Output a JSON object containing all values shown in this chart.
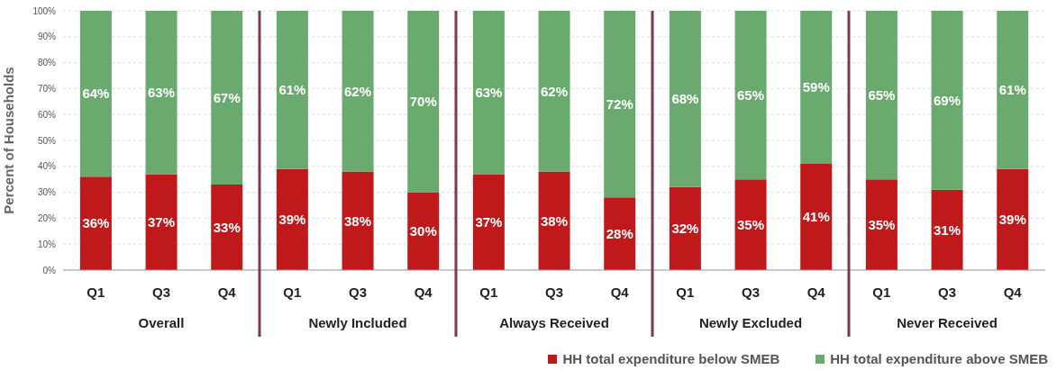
{
  "chart_data": {
    "type": "bar",
    "stacked": true,
    "ylabel": "Percent of Households",
    "categories": [
      "Q1",
      "Q3",
      "Q4",
      "Q1",
      "Q3",
      "Q4",
      "Q1",
      "Q3",
      "Q4",
      "Q1",
      "Q3",
      "Q4",
      "Q1",
      "Q3",
      "Q4"
    ],
    "annotations": [
      "Overall",
      "Newly Included",
      "Always Received",
      "Newly Excluded",
      "Never Received"
    ],
    "series": [
      {
        "name": "HH total expenditure below SMEB",
        "color": "#c0191c",
        "values": [
          36,
          37,
          33,
          39,
          38,
          30,
          37,
          38,
          28,
          32,
          35,
          41,
          35,
          31,
          39
        ],
        "value_labels": [
          "36%",
          "37%",
          "33%",
          "39%",
          "38%",
          "30%",
          "37%",
          "38%",
          "28%",
          "32%",
          "35%",
          "41%",
          "35%",
          "31%",
          "39%"
        ]
      },
      {
        "name": "HH total expenditure above SMEB",
        "color": "#6aaa6e",
        "values": [
          64,
          63,
          67,
          61,
          62,
          70,
          63,
          62,
          72,
          68,
          65,
          59,
          65,
          69,
          61
        ],
        "value_labels": [
          "64%",
          "63%",
          "67%",
          "61%",
          "62%",
          "70%",
          "63%",
          "62%",
          "72%",
          "68%",
          "65%",
          "59%",
          "65%",
          "69%",
          "61%"
        ]
      }
    ],
    "ylim": [
      0,
      100
    ],
    "yticks": [
      {
        "value": 0,
        "label": "0%"
      },
      {
        "value": 10,
        "label": "10%"
      },
      {
        "value": 20,
        "label": "20%"
      },
      {
        "value": 30,
        "label": "30%"
      },
      {
        "value": 40,
        "label": "40%"
      },
      {
        "value": 50,
        "label": "50%"
      },
      {
        "value": 60,
        "label": "60%"
      },
      {
        "value": 70,
        "label": "70%"
      },
      {
        "value": 80,
        "label": "80%"
      },
      {
        "value": 90,
        "label": "90%"
      },
      {
        "value": 100,
        "label": "100%"
      }
    ],
    "grid": "y",
    "legend": "bottom right"
  }
}
